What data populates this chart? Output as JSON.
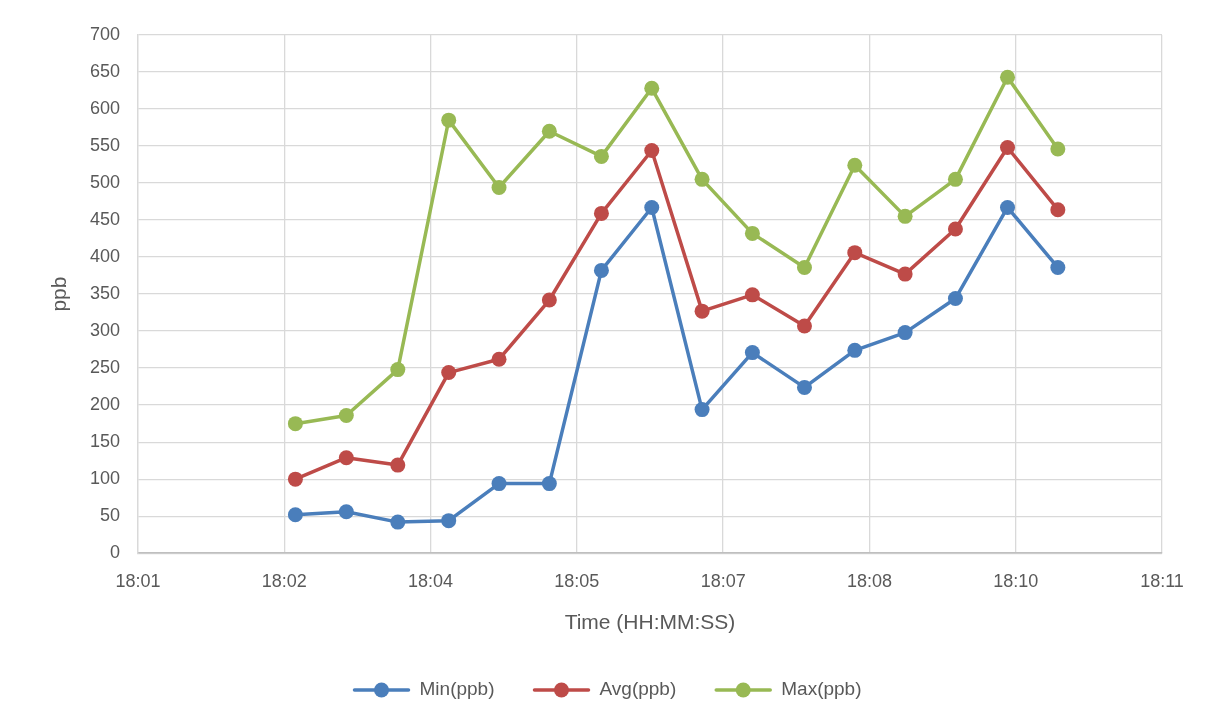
{
  "chart_data": {
    "type": "line",
    "xlabel": "Time (HH:MM:SS)",
    "ylabel": "ppb",
    "x": [
      18.0394,
      18.0481,
      18.0569,
      18.0656,
      18.0742,
      18.0828,
      18.0917,
      18.1003,
      18.1089,
      18.1175,
      18.1264,
      18.135,
      18.1436,
      18.1522,
      18.1611,
      18.1697
    ],
    "xlim": [
      18.0125,
      18.1875
    ],
    "xticks": [
      {
        "value": 18.0125,
        "label": "18:01"
      },
      {
        "value": 18.0375,
        "label": "18:02"
      },
      {
        "value": 18.0625,
        "label": "18:04"
      },
      {
        "value": 18.0875,
        "label": "18:05"
      },
      {
        "value": 18.1125,
        "label": "18:07"
      },
      {
        "value": 18.1375,
        "label": "18:08"
      },
      {
        "value": 18.1625,
        "label": "18:10"
      },
      {
        "value": 18.1875,
        "label": "18:11"
      }
    ],
    "ylim": [
      0,
      700
    ],
    "yticks": [
      0,
      50,
      100,
      150,
      200,
      250,
      300,
      350,
      400,
      450,
      500,
      550,
      600,
      650,
      700
    ],
    "grid": true,
    "legend": "bottom",
    "marker": "circle",
    "line_style": "solid",
    "series": [
      {
        "name": "Min(ppb)",
        "color": "#4a7ebb",
        "values": [
          52,
          56,
          42,
          44,
          94,
          94,
          382,
          467,
          194,
          271,
          224,
          274,
          298,
          344,
          467,
          386
        ]
      },
      {
        "name": "Avg(ppb)",
        "color": "#be4b48",
        "values": [
          100,
          129,
          119,
          244,
          262,
          342,
          459,
          544,
          327,
          349,
          307,
          406,
          377,
          438,
          548,
          464
        ]
      },
      {
        "name": "Max(ppb)",
        "color": "#98b954",
        "values": [
          175,
          186,
          248,
          585,
          494,
          570,
          536,
          628,
          505,
          432,
          386,
          524,
          455,
          505,
          643,
          546
        ]
      }
    ]
  }
}
